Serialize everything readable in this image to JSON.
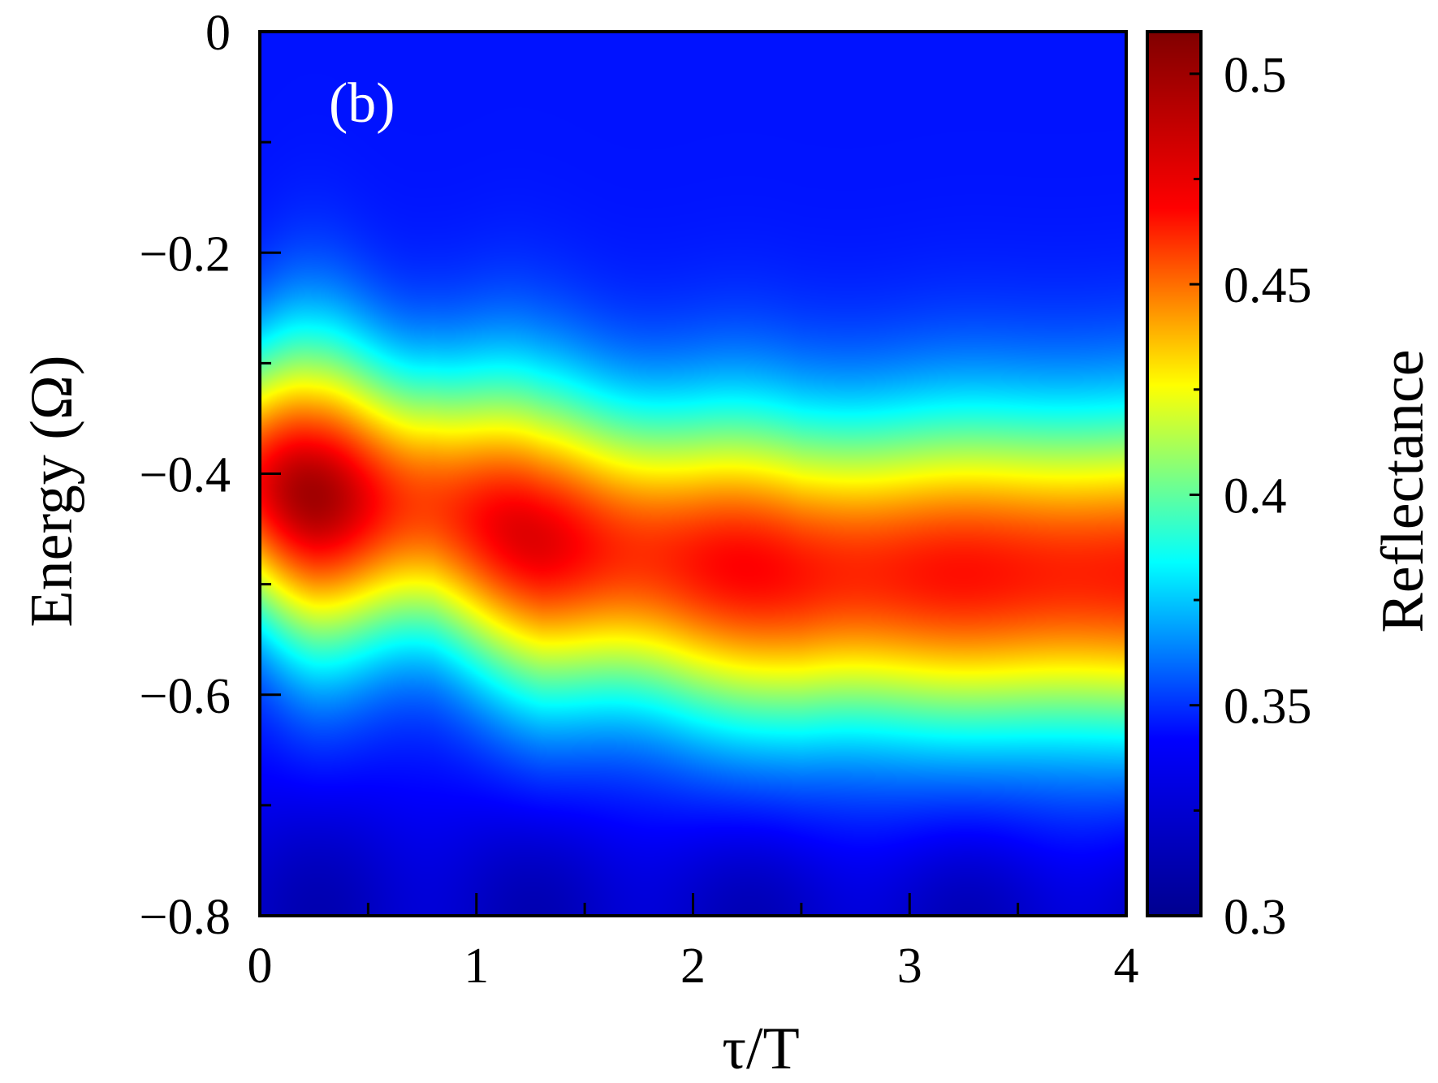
{
  "chart_data": {
    "type": "heatmap",
    "panel_label": "(b)",
    "xlabel": "τ/T",
    "ylabel": "Energy (Ω)",
    "colorbar_label": "Reflectance",
    "xlim": [
      0,
      4
    ],
    "ylim": [
      -0.8,
      0
    ],
    "clim": [
      0.3,
      0.51
    ],
    "x_ticks": [
      0,
      1,
      2,
      3,
      4
    ],
    "x_tick_labels": [
      "0",
      "1",
      "2",
      "3",
      "4"
    ],
    "x_minor_ticks": [
      0.5,
      1.5,
      2.5,
      3.5
    ],
    "y_ticks": [
      0,
      -0.2,
      -0.4,
      -0.6,
      -0.8
    ],
    "y_tick_labels": [
      "0",
      "−0.2",
      "−0.4",
      "−0.6",
      "−0.8"
    ],
    "y_minor_ticks": [
      -0.1,
      -0.3,
      -0.5,
      -0.7
    ],
    "colorbar_ticks": [
      0.3,
      0.35,
      0.4,
      0.45,
      0.5
    ],
    "colorbar_tick_labels": [
      "0.3",
      "0.35",
      "0.4",
      "0.45",
      "0.5"
    ],
    "colorbar_minor_ticks": [
      0.325,
      0.375,
      0.425,
      0.475
    ],
    "colormap": "jet",
    "colormap_stops": [
      "#00008f",
      "#0000ff",
      "#00ffff",
      "#ffff00",
      "#ff0000",
      "#800000"
    ],
    "grid": false,
    "features": {
      "band_center_energy": [
        {
          "tau": 0.0,
          "energy": -0.41
        },
        {
          "tau": 0.25,
          "energy": -0.42
        },
        {
          "tau": 0.8,
          "energy": -0.43
        },
        {
          "tau": 1.3,
          "energy": -0.46
        },
        {
          "tau": 2.0,
          "energy": -0.48
        },
        {
          "tau": 2.5,
          "energy": -0.49
        },
        {
          "tau": 4.0,
          "energy": -0.49
        }
      ],
      "maxima": [
        {
          "tau": 0.27,
          "energy": -0.43,
          "reflectance": 0.51
        },
        {
          "tau": 1.3,
          "energy": -0.46,
          "reflectance": 0.49
        },
        {
          "tau": 2.3,
          "energy": -0.48,
          "reflectance": 0.48
        }
      ],
      "background_reflectance": 0.33
    }
  }
}
